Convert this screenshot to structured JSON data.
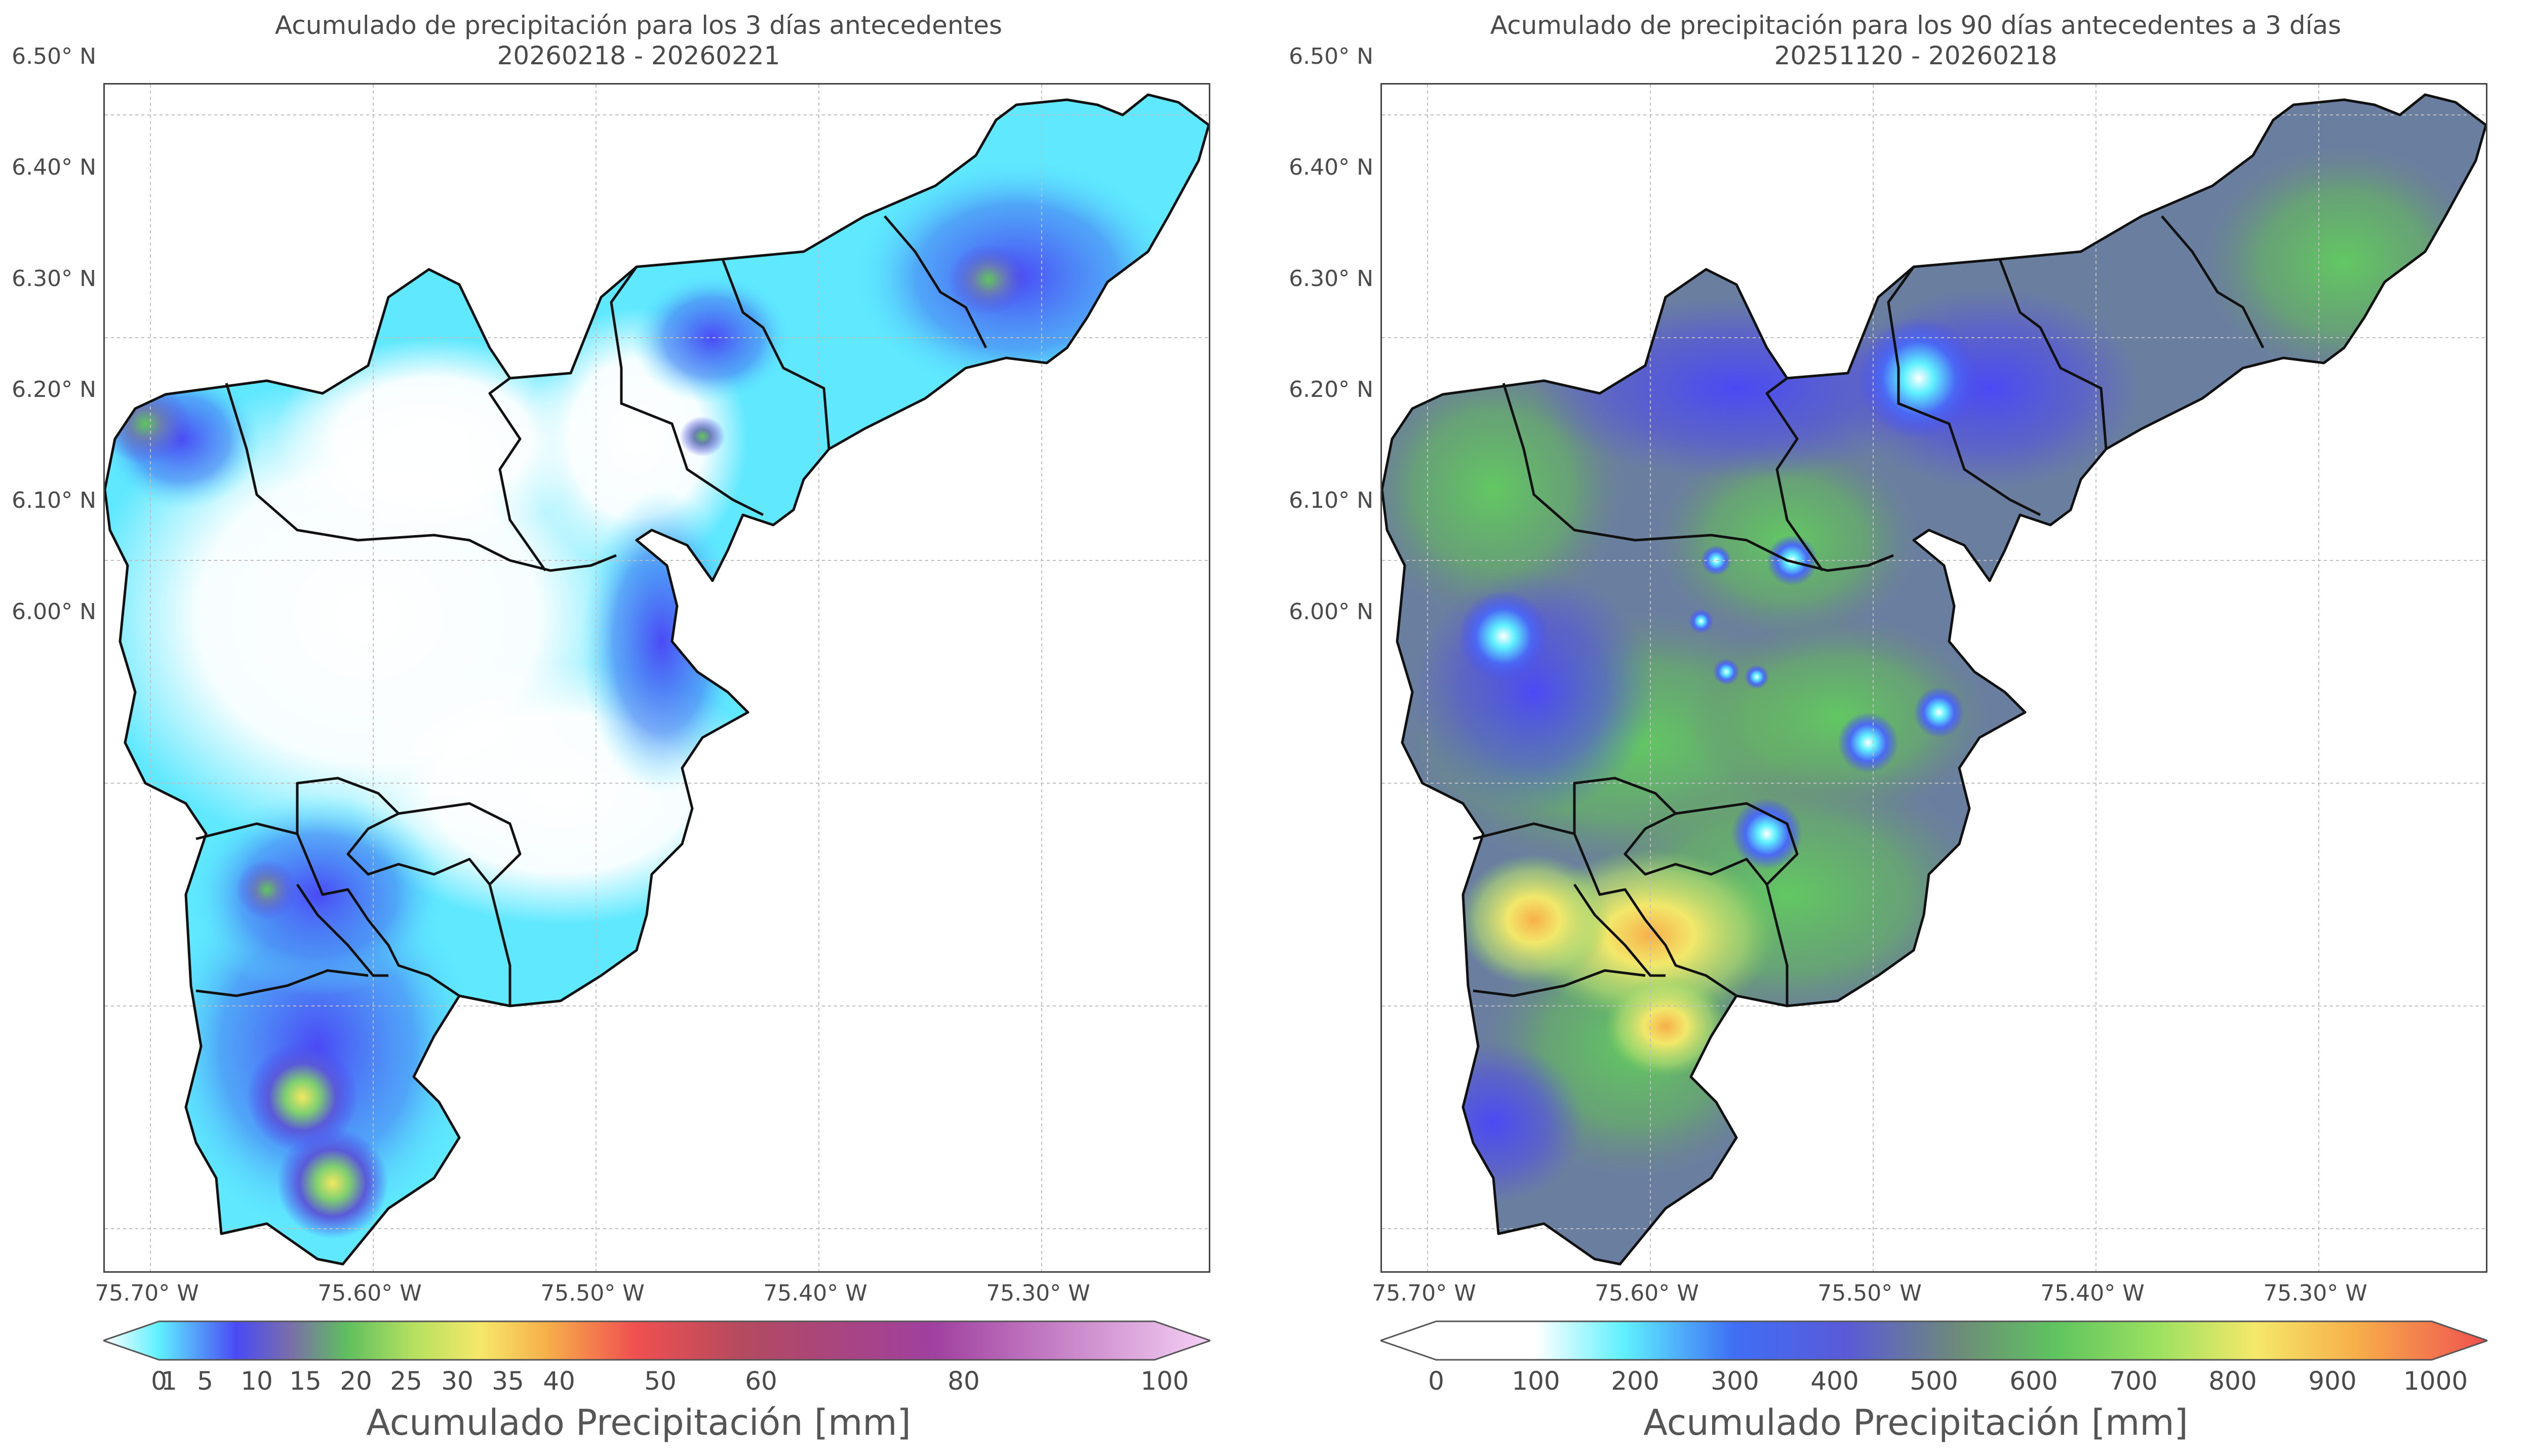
{
  "left_panel": {
    "title_line1": "Acumulado de precipitación para los 3 días antecedentes",
    "title_line2": "20260218 - 20260221",
    "colorbar_label": "Acumulado Precipitación [mm]",
    "colorbar_ticks": [
      "0",
      "1",
      "5",
      "10",
      "15",
      "20",
      "25",
      "30",
      "35",
      "40",
      "50",
      "60",
      "80",
      "100"
    ],
    "colorbar_stops": [
      "#ffffff",
      "#5ff0ff",
      "#3fd6f0",
      "#4a4af5",
      "#7a6fa8",
      "#5fbf5f",
      "#b5e060",
      "#f5e86a",
      "#f7b04a",
      "#f06040",
      "#e84a4a",
      "#b24a60",
      "#a040a0",
      "#e8b0e8",
      "#f4d0f4"
    ]
  },
  "right_panel": {
    "title_line1": "Acumulado de precipitación para los 90 días antecedentes a 3 días",
    "title_line2": "20251120 - 20260218",
    "colorbar_label": "Acumulado Precipitación [mm]",
    "colorbar_ticks": [
      "0",
      "100",
      "200",
      "300",
      "400",
      "500",
      "600",
      "700",
      "800",
      "900",
      "1000"
    ],
    "colorbar_stops": [
      "#ffffff",
      "#ffffff",
      "#5ff0ff",
      "#3f6ef5",
      "#5a5ad8",
      "#6d8a7a",
      "#5fc45f",
      "#9ae060",
      "#f5e86a",
      "#f7b04a",
      "#f05050"
    ]
  },
  "axes": {
    "y_ticks": [
      "6.50° N",
      "6.40° N",
      "6.30° N",
      "6.20° N",
      "6.10° N",
      "6.00° N"
    ],
    "x_ticks": [
      "75.70° W",
      "75.60° W",
      "75.50° W",
      "75.40° W",
      "75.30° W"
    ]
  },
  "colors": {
    "boundary": "#111111",
    "grid": "#bfbfbf",
    "frame": "#444444"
  }
}
